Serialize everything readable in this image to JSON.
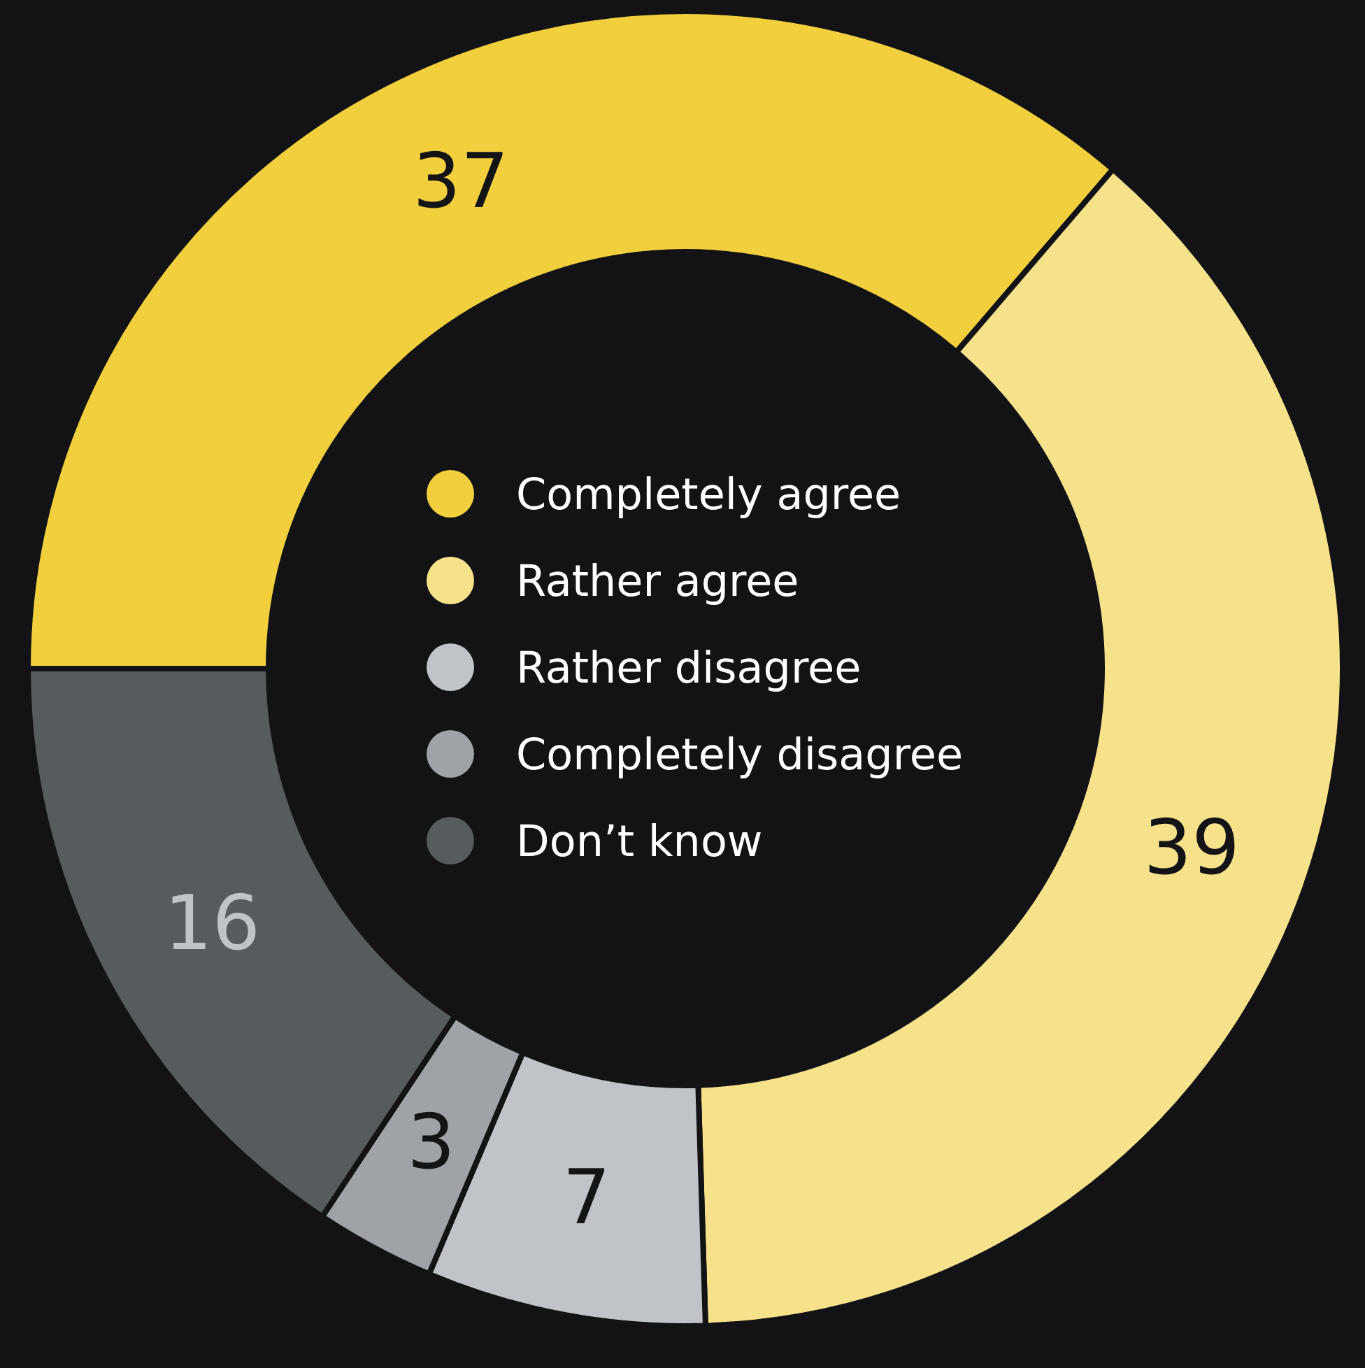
{
  "chart_data": {
    "type": "donut",
    "categories": [
      "Completely agree",
      "Rather agree",
      "Rather disagree",
      "Completely disagree",
      "Don’t know"
    ],
    "values": [
      37,
      39,
      7,
      3,
      16
    ],
    "colors": [
      "#f2cf3c",
      "#f7e28c",
      "#c0c4c8",
      "#9fa2a6",
      "#565b5d"
    ],
    "data_labels": true,
    "legend": "center"
  }
}
